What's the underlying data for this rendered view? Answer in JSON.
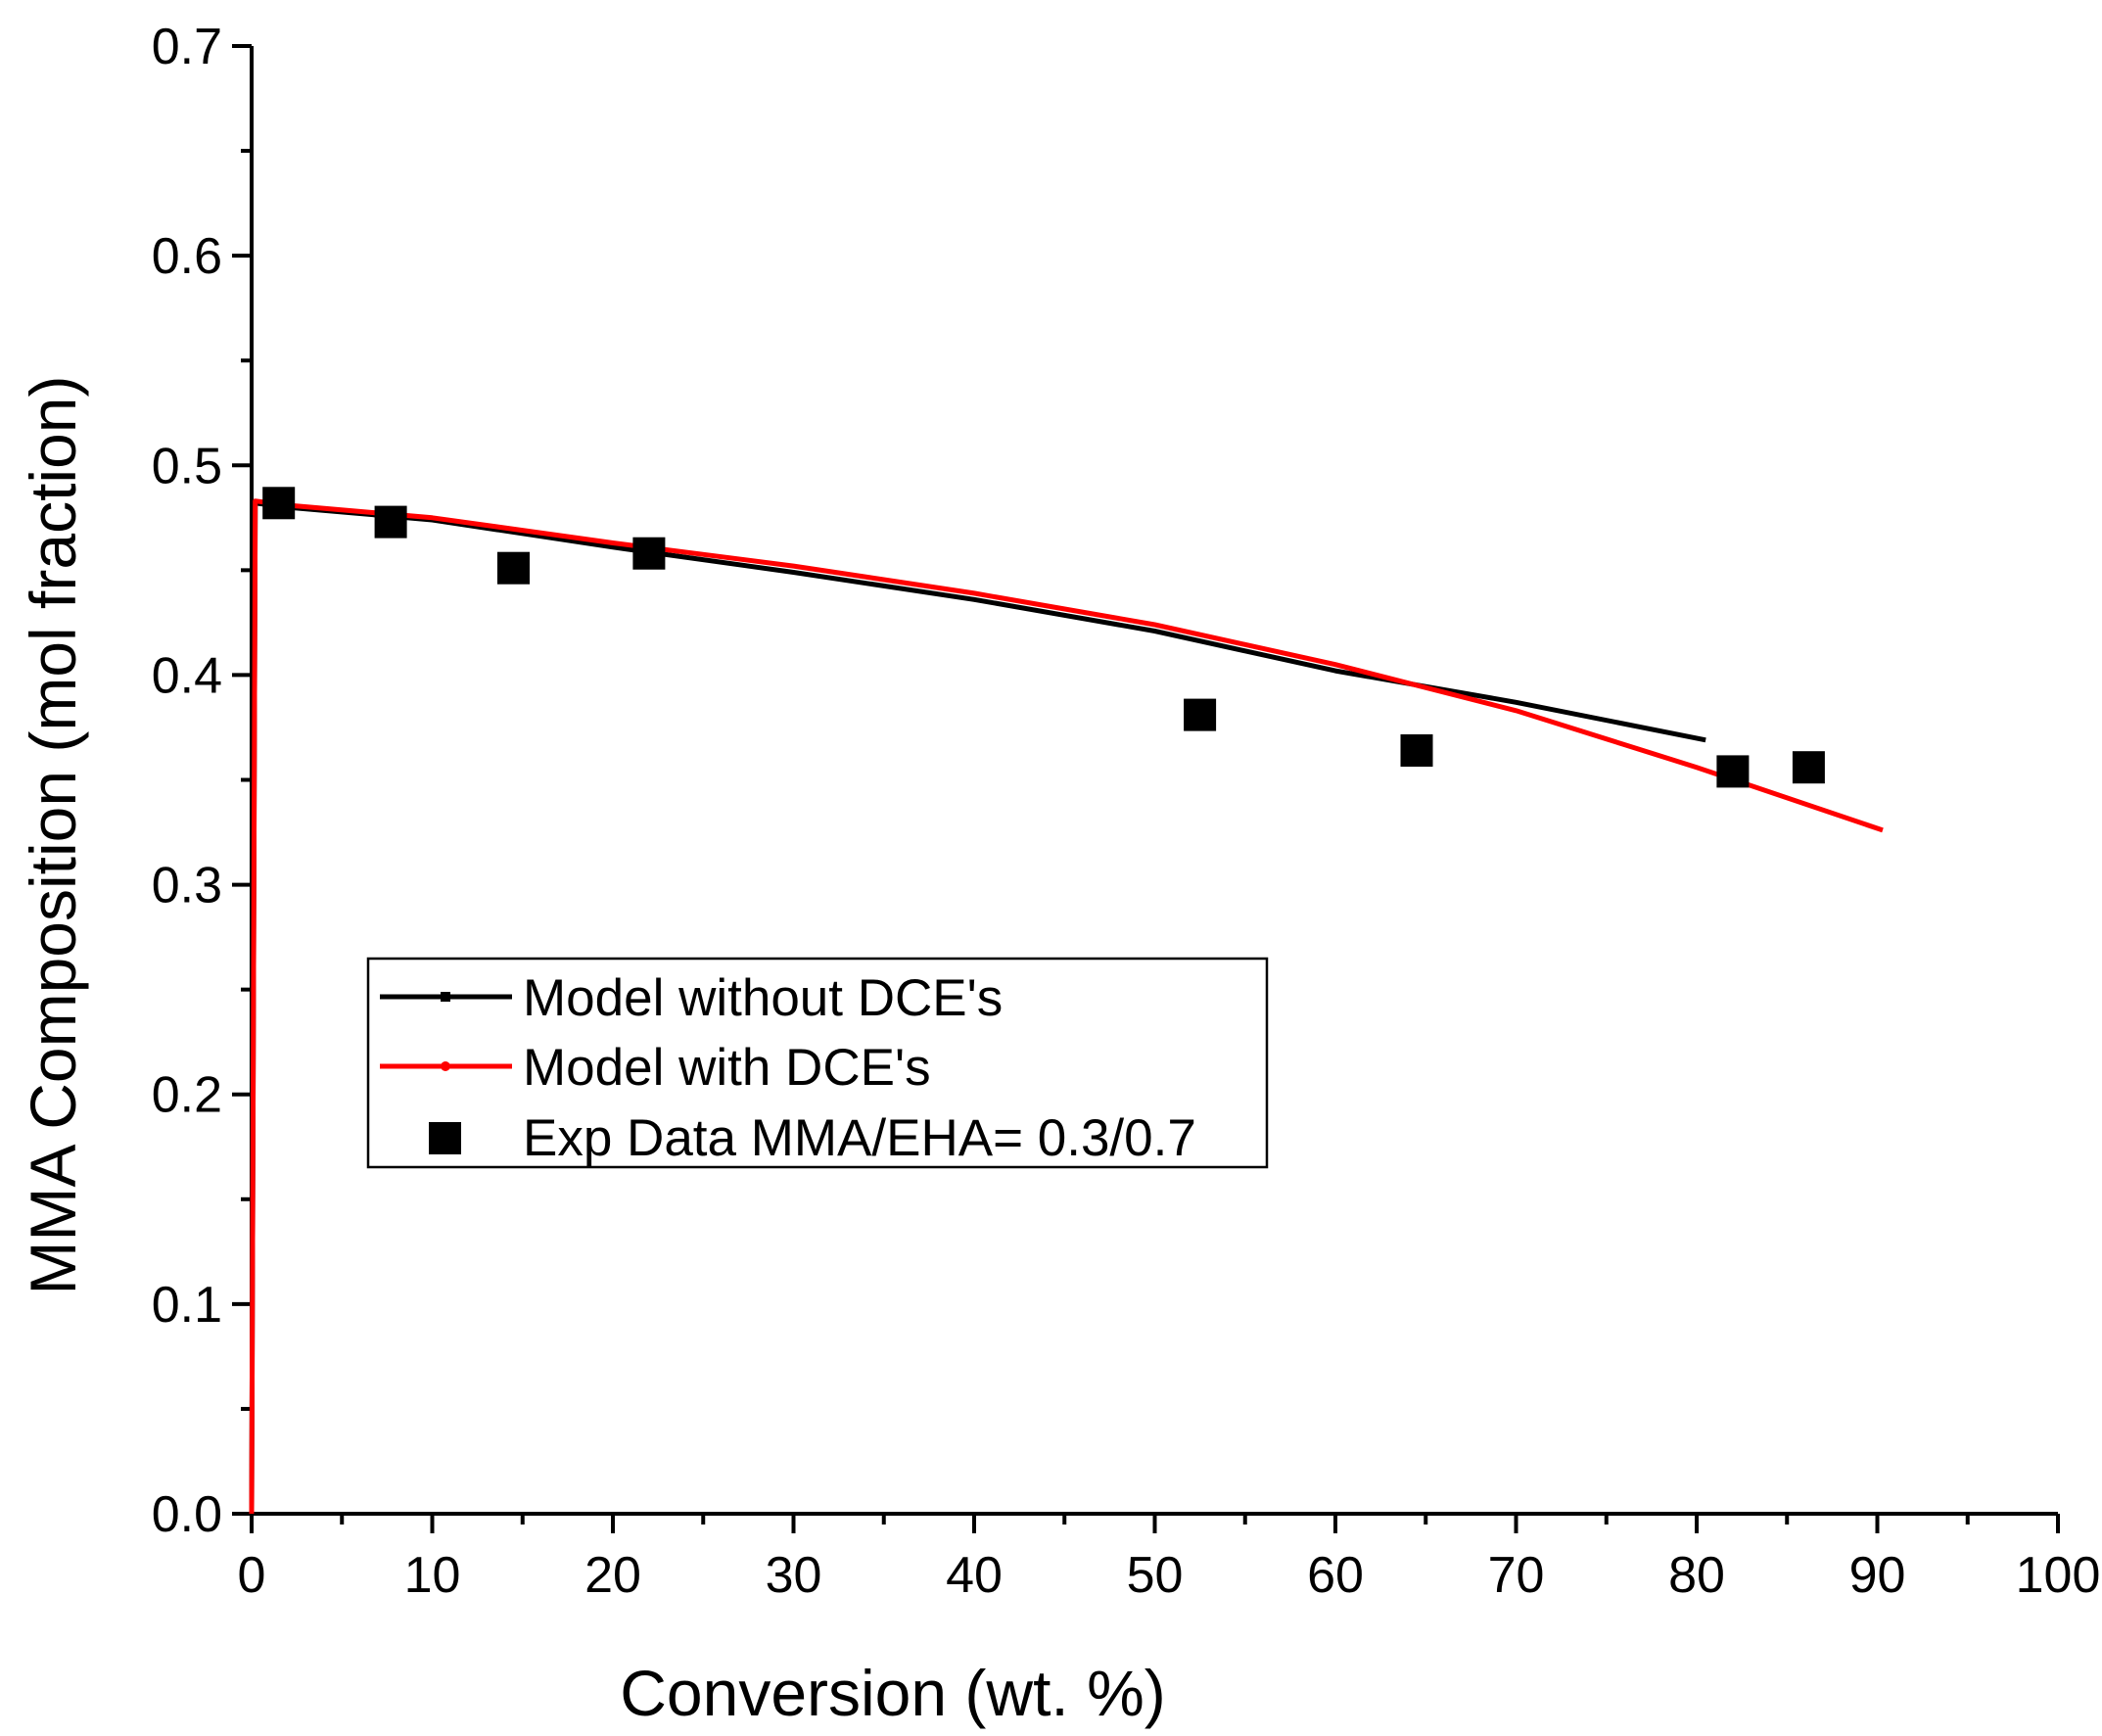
{
  "chart_data": {
    "type": "line",
    "title": "",
    "xlabel": "Conversion (wt. %)",
    "ylabel": "MMA Composition (mol fraction)",
    "xlim": [
      0,
      100
    ],
    "ylim": [
      0,
      0.7
    ],
    "x_ticks": [
      0,
      10,
      20,
      30,
      40,
      50,
      60,
      70,
      80,
      90,
      100
    ],
    "x_tick_labels": [
      "0",
      "10",
      "20",
      "30",
      "40",
      "50",
      "60",
      "70",
      "80",
      "90",
      "100"
    ],
    "y_ticks": [
      0,
      0.1,
      0.2,
      0.3,
      0.4,
      0.5,
      0.6,
      0.7
    ],
    "y_tick_labels": [
      "0.0",
      "0.1",
      "0.2",
      "0.3",
      "0.4",
      "0.5",
      "0.6",
      "0.7"
    ],
    "grid": false,
    "legend_position": "center-left",
    "series": [
      {
        "name": "Model without DCE's",
        "kind": "line",
        "color": "#000000",
        "x": [
          0,
          0.2,
          2,
          10,
          20,
          30,
          40,
          50,
          60,
          70,
          80.5
        ],
        "y": [
          0,
          0.482,
          0.48,
          0.474,
          0.461,
          0.449,
          0.436,
          0.421,
          0.402,
          0.387,
          0.369
        ]
      },
      {
        "name": "Model with DCE's",
        "kind": "line",
        "color": "#ff0000",
        "x": [
          0,
          0.2,
          2,
          10,
          20,
          30,
          40,
          50,
          60,
          70,
          80,
          90.3
        ],
        "y": [
          0,
          0.483,
          0.481,
          0.475,
          0.463,
          0.452,
          0.439,
          0.424,
          0.405,
          0.383,
          0.356,
          0.326
        ]
      },
      {
        "name": "Exp Data MMA/EHA= 0.3/0.7",
        "kind": "scatter",
        "marker": "square",
        "color": "#000000",
        "x": [
          1.5,
          7.7,
          14.5,
          22,
          52.5,
          64.5,
          82,
          86.2
        ],
        "y": [
          0.482,
          0.473,
          0.451,
          0.458,
          0.381,
          0.364,
          0.354,
          0.356
        ]
      }
    ]
  }
}
